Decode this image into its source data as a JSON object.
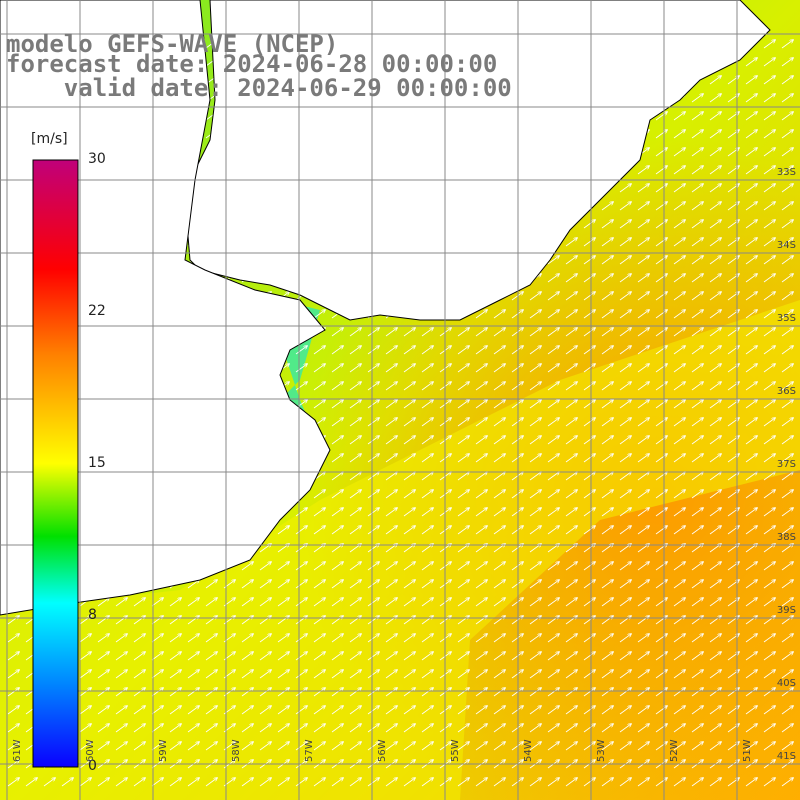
{
  "title": {
    "line1": "modelo GEFS-WAVE (NCEP)",
    "line2": "forecast date: 2024-06-28 00:00:00",
    "line3": "    valid date: 2024-06-29 00:00:00"
  },
  "colorbar": {
    "unit": "[m/s]",
    "ticks": [
      "30",
      "22",
      "15",
      "8",
      "0"
    ],
    "stops": [
      "#0a00ff",
      "#0088ff",
      "#00ffff",
      "#00e000",
      "#ffff00",
      "#ff8000",
      "#ff0000",
      "#c0007a"
    ]
  },
  "map": {
    "lat_labels": [
      "33S",
      "34S",
      "35S",
      "36S",
      "37S",
      "38S",
      "39S",
      "40S",
      "41S"
    ],
    "lon_labels": [
      "61W",
      "60W",
      "59W",
      "58W",
      "57W",
      "56W",
      "55W",
      "54W",
      "53W",
      "52W",
      "51W"
    ],
    "land_color": "#ffffff",
    "coast_color": "#000000",
    "grid_color": "#888888",
    "arrow_color": "#ffffff"
  }
}
